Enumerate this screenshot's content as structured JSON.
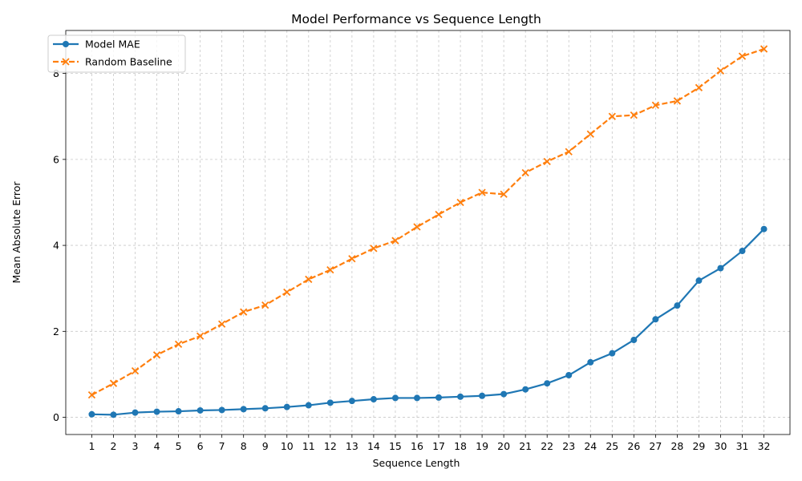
{
  "chart_data": {
    "type": "line",
    "title": "Model Performance vs Sequence Length",
    "xlabel": "Sequence Length",
    "ylabel": "Mean Absolute Error",
    "x": [
      1,
      2,
      3,
      4,
      5,
      6,
      7,
      8,
      9,
      10,
      11,
      12,
      13,
      14,
      15,
      16,
      17,
      18,
      19,
      20,
      21,
      22,
      23,
      24,
      25,
      26,
      27,
      28,
      29,
      30,
      31,
      32
    ],
    "xlim": [
      -0.2,
      33.2
    ],
    "ylim": [
      -0.4,
      9.0
    ],
    "yticks": [
      0,
      2,
      4,
      6,
      8
    ],
    "grid": true,
    "legend_position": "top-left",
    "series": [
      {
        "name": "Model MAE",
        "color": "#1f77b4",
        "marker": "circle",
        "linestyle": "solid",
        "values": [
          0.07,
          0.06,
          0.11,
          0.13,
          0.14,
          0.16,
          0.17,
          0.19,
          0.21,
          0.24,
          0.28,
          0.34,
          0.38,
          0.42,
          0.45,
          0.45,
          0.46,
          0.48,
          0.5,
          0.54,
          0.65,
          0.79,
          0.98,
          1.28,
          1.49,
          1.8,
          2.28,
          2.6,
          3.18,
          3.47,
          3.87,
          4.38
        ]
      },
      {
        "name": "Random Baseline",
        "color": "#ff7f0e",
        "marker": "x",
        "linestyle": "dashed",
        "values": [
          0.52,
          0.79,
          1.08,
          1.45,
          1.7,
          1.89,
          2.17,
          2.45,
          2.61,
          2.91,
          3.21,
          3.43,
          3.69,
          3.93,
          4.11,
          4.43,
          4.72,
          5.0,
          5.23,
          5.19,
          5.69,
          5.95,
          6.18,
          6.59,
          7.0,
          7.03,
          7.26,
          7.36,
          7.67,
          8.06,
          8.4,
          8.57
        ]
      }
    ]
  }
}
